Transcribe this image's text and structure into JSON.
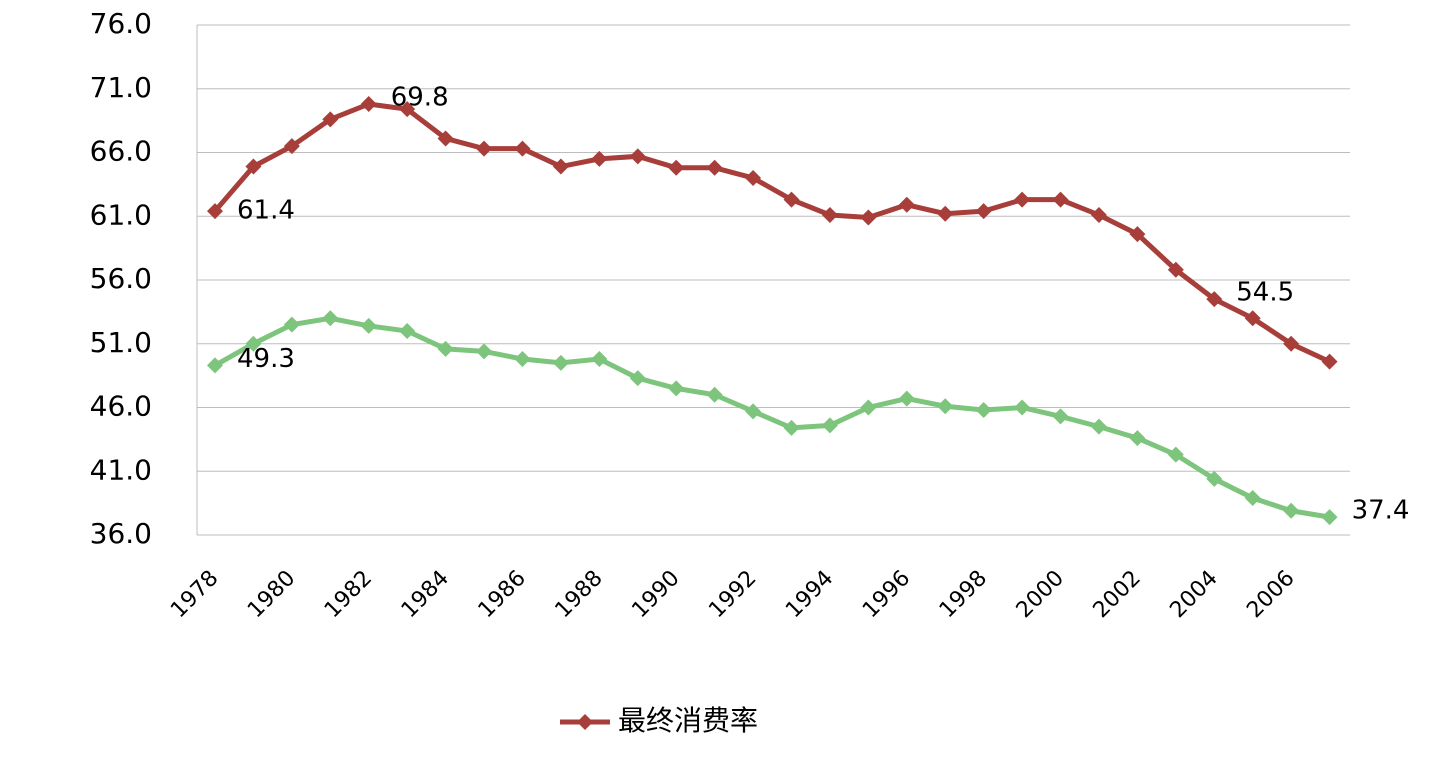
{
  "chart_data": {
    "type": "line",
    "categories": [
      "1978",
      null,
      "1980",
      null,
      "1982",
      null,
      "1984",
      null,
      "1986",
      null,
      "1988",
      null,
      "1990",
      null,
      "1992",
      null,
      "1994",
      null,
      "1996",
      null,
      "1998",
      null,
      "2000",
      null,
      "2002",
      null,
      "2004",
      null,
      "2006",
      null
    ],
    "series": [
      {
        "name": "最终消费率",
        "color": "#a83e3a",
        "values": [
          61.4,
          64.9,
          66.5,
          68.6,
          69.8,
          69.4,
          67.1,
          66.3,
          66.3,
          64.9,
          65.5,
          65.7,
          64.8,
          64.8,
          64.0,
          62.3,
          61.1,
          60.9,
          61.9,
          61.2,
          61.4,
          62.3,
          62.3,
          61.1,
          59.6,
          56.8,
          54.5,
          53.0,
          51.0,
          49.6
        ],
        "value_labels": [
          "61.4",
          null,
          null,
          null,
          "69.8",
          null,
          null,
          null,
          null,
          null,
          null,
          null,
          null,
          null,
          null,
          null,
          null,
          null,
          null,
          null,
          null,
          null,
          null,
          null,
          null,
          null,
          "54.5",
          null,
          null,
          null
        ]
      },
      {
        "color": "#7dc47d",
        "values": [
          49.3,
          51.0,
          52.5,
          53.0,
          52.4,
          52.0,
          50.6,
          50.4,
          49.8,
          49.5,
          49.8,
          48.3,
          47.5,
          47.0,
          45.7,
          44.4,
          44.6,
          46.0,
          46.7,
          46.1,
          45.8,
          46.0,
          45.3,
          44.5,
          43.6,
          42.3,
          40.4,
          38.9,
          37.9,
          37.4
        ],
        "value_labels": [
          "49.3",
          null,
          null,
          null,
          null,
          null,
          null,
          null,
          null,
          null,
          null,
          null,
          null,
          null,
          null,
          null,
          null,
          null,
          null,
          null,
          null,
          null,
          null,
          null,
          null,
          null,
          null,
          null,
          null,
          "37.4"
        ]
      }
    ],
    "ylim": [
      36,
      76
    ],
    "yticks": [
      {
        "value": 36,
        "label": "36.0"
      },
      {
        "value": 41,
        "label": "41.0"
      },
      {
        "value": 46,
        "label": "46.0"
      },
      {
        "value": 51,
        "label": "51.0"
      },
      {
        "value": 56,
        "label": "56.0"
      },
      {
        "value": 61,
        "label": "61.0"
      },
      {
        "value": 66,
        "label": "66.0"
      },
      {
        "value": 71,
        "label": "71.0"
      },
      {
        "value": 76,
        "label": "76.0"
      }
    ],
    "grid": true
  }
}
